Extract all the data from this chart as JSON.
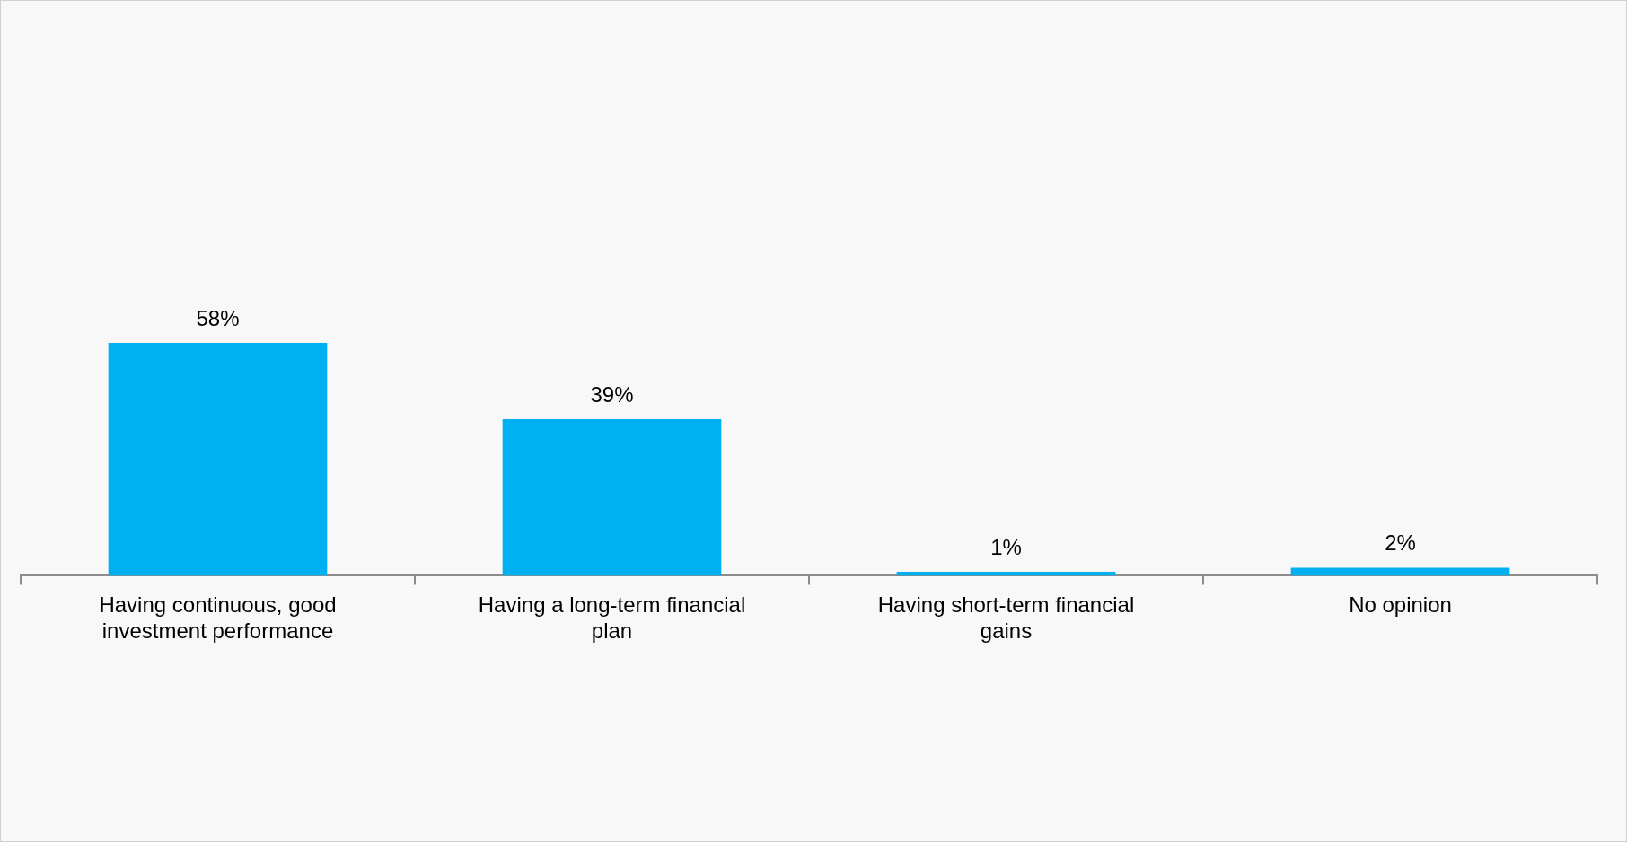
{
  "chart_data": {
    "type": "bar",
    "categories": [
      "Having continuous, good investment performance",
      "Having a long-term financial plan",
      "Having short-term financial gains",
      "No opinion"
    ],
    "values": [
      58,
      39,
      1,
      2
    ],
    "value_labels": [
      "58%",
      "39%",
      "1%",
      "2%"
    ],
    "color": "#00b0f0",
    "tick_labels": "x",
    "grid": false,
    "legend": false
  }
}
